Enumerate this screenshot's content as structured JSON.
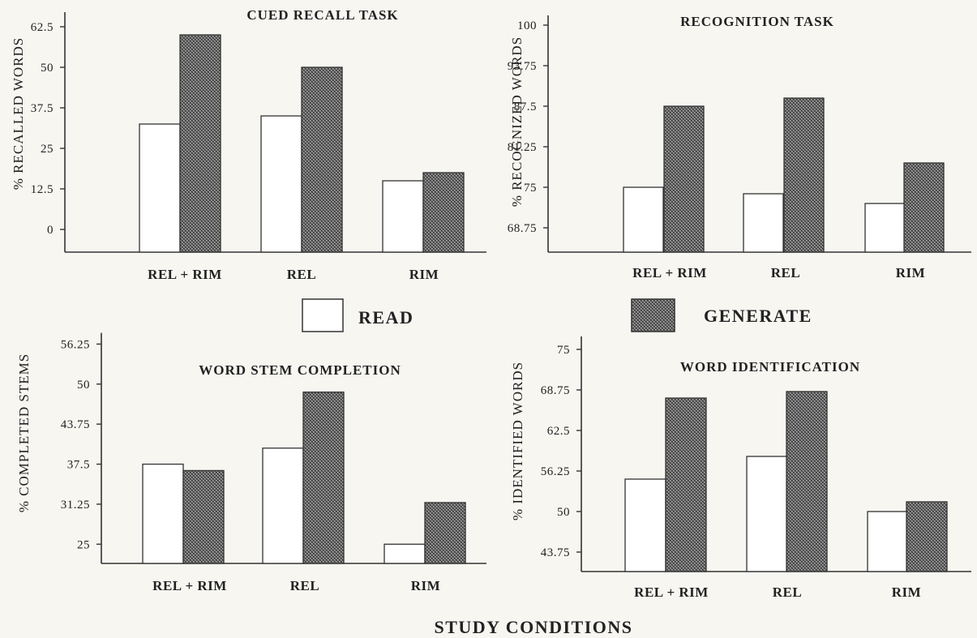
{
  "figure": {
    "xlabel": "STUDY CONDITIONS"
  },
  "legend": {
    "items": [
      {
        "label": "READ",
        "style": "open"
      },
      {
        "label": "GENERATE",
        "style": "stippled"
      }
    ],
    "placement": "center, between rows"
  },
  "colors": {
    "read_fill": "#ffffff",
    "generate_fill": "#6e6e6e",
    "axis": "#333333",
    "background": "#f7f6f1"
  },
  "chart_data": [
    {
      "type": "bar",
      "title": "CUED RECALL TASK",
      "ylabel": "% RECALLED WORDS",
      "categories": [
        "REL + RIM",
        "REL",
        "RIM"
      ],
      "series": [
        {
          "name": "READ",
          "values": [
            32.5,
            35,
            15
          ]
        },
        {
          "name": "GENERATE",
          "values": [
            60,
            50,
            17.5
          ]
        }
      ],
      "ylim": [
        -7,
        67
      ],
      "yticks": [
        0,
        12.5,
        25,
        37.5,
        50,
        62.5
      ],
      "ytick_labels": [
        "0",
        "12.5",
        "25",
        "37.5",
        "50",
        "62.5"
      ],
      "grid": false
    },
    {
      "type": "bar",
      "title": "RECOGNITION TASK",
      "ylabel": "% RECOGNIZED WORDS",
      "categories": [
        "REL + RIM",
        "REL",
        "RIM"
      ],
      "series": [
        {
          "name": "READ",
          "values": [
            75,
            74,
            72.5
          ]
        },
        {
          "name": "GENERATE",
          "values": [
            87.5,
            88.75,
            78.75
          ]
        }
      ],
      "ylim": [
        65,
        101.5
      ],
      "yticks": [
        68.75,
        75,
        81.25,
        87.5,
        93.75,
        100
      ],
      "ytick_labels": [
        "68.75",
        "75",
        "81.25",
        "87.5",
        "93.75",
        "100"
      ],
      "grid": false
    },
    {
      "type": "bar",
      "title": "WORD STEM COMPLETION",
      "ylabel": "% COMPLETED STEMS",
      "categories": [
        "REL + RIM",
        "REL",
        "RIM"
      ],
      "series": [
        {
          "name": "READ",
          "values": [
            37.5,
            40,
            25
          ]
        },
        {
          "name": "GENERATE",
          "values": [
            36.5,
            48.75,
            31.5
          ]
        }
      ],
      "ylim": [
        22,
        58
      ],
      "yticks": [
        25,
        31.25,
        37.5,
        43.75,
        50,
        56.25
      ],
      "ytick_labels": [
        "25",
        "31.25",
        "37.5",
        "43.75",
        "50",
        "56.25"
      ],
      "grid": false
    },
    {
      "type": "bar",
      "title": "WORD IDENTIFICATION",
      "ylabel": "% IDENTIFIED WORDS",
      "categories": [
        "REL + RIM",
        "REL",
        "RIM"
      ],
      "series": [
        {
          "name": "READ",
          "values": [
            55,
            58.5,
            50
          ]
        },
        {
          "name": "GENERATE",
          "values": [
            67.5,
            68.5,
            51.5
          ]
        }
      ],
      "ylim": [
        40.75,
        77
      ],
      "yticks": [
        43.75,
        50,
        56.25,
        62.5,
        68.75,
        75
      ],
      "ytick_labels": [
        "43.75",
        "50",
        "56.25",
        "62.5",
        "68.75",
        "75"
      ],
      "grid": false
    }
  ]
}
